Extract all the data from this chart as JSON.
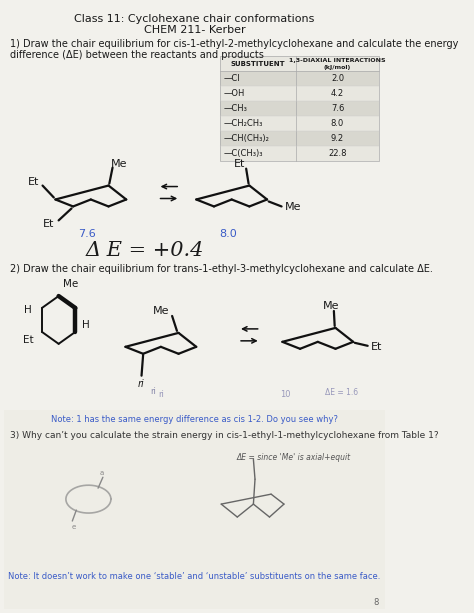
{
  "title_line1": "Class 11: Cyclohexane chair conformations",
  "title_line2": "CHEM 211- Kerber",
  "q1_text_line1": "1) Draw the chair equilibrium for cis-1-ethyl-2-methylcyclohexane and calculate the energy",
  "q1_text_line2": "difference (ΔE) between the reactants and products",
  "table_header1": "SUBSTITUENT",
  "table_header2a": "1,3-DIAXIAL INTERACTIONS",
  "table_header2b": "(kJ/mol)",
  "table_rows": [
    [
      "—Cl",
      "2.0"
    ],
    [
      "—OH",
      "4.2"
    ],
    [
      "—CH₃",
      "7.6"
    ],
    [
      "—CH₂CH₃",
      "8.0"
    ],
    [
      "—CH(CH₃)₂",
      "9.2"
    ],
    [
      "—C(CH₃)₃",
      "22.8"
    ]
  ],
  "value_left": "7.6",
  "value_right": "8.0",
  "delta_e_line": "Δ E = +0.4",
  "q2_text": "2) Draw the chair equilibrium for trans-1-ethyl-3-methylcyclohexane and calculate ΔE.",
  "note1": "Note: 1 has the same energy difference as cis 1-2. Do you see why?",
  "q3_text": "3) Why can’t you calculate the strain energy in cis-1-ethyl-1-methylcyclohexane from Table 1?",
  "note2": "Note: It doesn’t work to make one ‘stable’ and ‘unstable’ substituents on the same face.",
  "bg_color": "#f2f1ec",
  "text_color": "#1a1a1a",
  "blue_color": "#3a5bc7",
  "table_bg_light": "#e8e7e0",
  "table_bg_dark": "#d8d7cf",
  "page_num": "8"
}
